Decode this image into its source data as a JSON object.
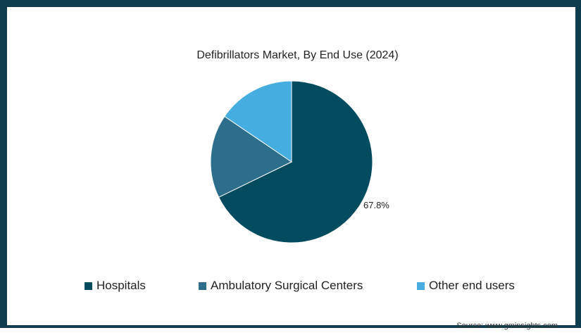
{
  "chart_data": {
    "type": "pie",
    "title": "Defibrillators Market, By End Use (2024)",
    "categories": [
      "Hospitals",
      "Ambulatory Surgical Centers",
      "Other end users"
    ],
    "values": [
      67.8,
      16.7,
      15.5
    ],
    "colors": [
      "#034b5e",
      "#2c6e8c",
      "#45ade0"
    ],
    "data_labels": [
      "67.8%",
      "",
      ""
    ],
    "legend_position": "bottom"
  },
  "source": "Source: www.gminsights.com"
}
